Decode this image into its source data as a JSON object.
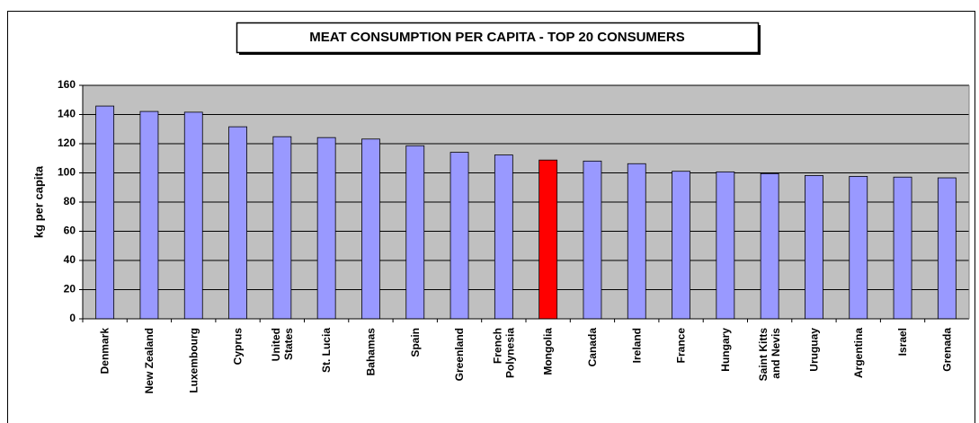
{
  "chart_data": {
    "type": "bar",
    "title": "MEAT CONSUMPTION PER CAPITA - TOP 20 CONSUMERS",
    "y_label": "kg per capita",
    "categories": [
      "Denmark",
      "New Zealand",
      "Luxembourg",
      "Cyprus",
      "United\nStates",
      "St. Lucia",
      "Bahamas",
      "Spain",
      "Greenland",
      "French\nPolynesia",
      "Mongolia",
      "Canada",
      "Ireland",
      "France",
      "Hungary",
      "Saint Kitts\nand Nevis",
      "Uruguay",
      "Argentina",
      "Israel",
      "Grenada"
    ],
    "values": [
      145.8,
      142.1,
      141.6,
      131.6,
      124.8,
      124.2,
      123.2,
      118.6,
      114.1,
      112.3,
      108.8,
      108.1,
      106.3,
      101.1,
      100.7,
      99.5,
      98.2,
      97.6,
      97.1,
      96.6
    ],
    "colors": [
      "#9999ff",
      "#9999ff",
      "#9999ff",
      "#9999ff",
      "#9999ff",
      "#9999ff",
      "#9999ff",
      "#9999ff",
      "#9999ff",
      "#9999ff",
      "#ff0000",
      "#9999ff",
      "#9999ff",
      "#9999ff",
      "#9999ff",
      "#9999ff",
      "#9999ff",
      "#9999ff",
      "#9999ff",
      "#9999ff"
    ],
    "ylim": [
      0,
      160
    ],
    "yticks": [
      0,
      20,
      40,
      60,
      80,
      100,
      120,
      140,
      160
    ],
    "grid": true
  }
}
